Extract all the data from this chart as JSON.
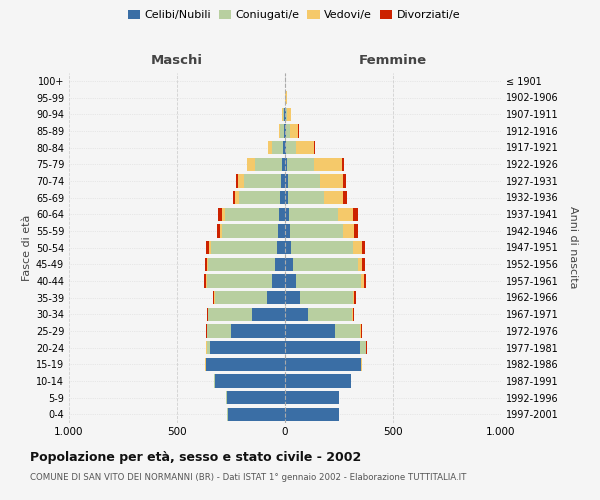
{
  "age_groups": [
    "0-4",
    "5-9",
    "10-14",
    "15-19",
    "20-24",
    "25-29",
    "30-34",
    "35-39",
    "40-44",
    "45-49",
    "50-54",
    "55-59",
    "60-64",
    "65-69",
    "70-74",
    "75-79",
    "80-84",
    "85-89",
    "90-94",
    "95-99",
    "100+"
  ],
  "birth_years": [
    "1997-2001",
    "1992-1996",
    "1987-1991",
    "1982-1986",
    "1977-1981",
    "1972-1976",
    "1967-1971",
    "1962-1966",
    "1957-1961",
    "1952-1956",
    "1947-1951",
    "1942-1946",
    "1937-1941",
    "1932-1936",
    "1927-1931",
    "1922-1926",
    "1917-1921",
    "1912-1916",
    "1907-1911",
    "1902-1906",
    "≤ 1901"
  ],
  "maschi": {
    "celibi": [
      265,
      270,
      325,
      365,
      345,
      250,
      155,
      85,
      60,
      45,
      38,
      32,
      28,
      22,
      18,
      12,
      8,
      5,
      3,
      0,
      0
    ],
    "coniugati": [
      2,
      2,
      2,
      3,
      18,
      110,
      200,
      240,
      300,
      310,
      305,
      260,
      250,
      190,
      170,
      125,
      50,
      18,
      8,
      0,
      0
    ],
    "vedovi": [
      0,
      0,
      0,
      3,
      2,
      2,
      3,
      2,
      5,
      5,
      8,
      10,
      15,
      20,
      30,
      40,
      20,
      5,
      5,
      0,
      0
    ],
    "divorziati": [
      0,
      0,
      0,
      0,
      0,
      3,
      5,
      8,
      10,
      12,
      15,
      15,
      15,
      10,
      10,
      0,
      0,
      0,
      0,
      0,
      0
    ]
  },
  "femmine": {
    "nubili": [
      250,
      250,
      305,
      350,
      345,
      230,
      108,
      68,
      52,
      38,
      28,
      22,
      18,
      14,
      12,
      8,
      5,
      4,
      3,
      0,
      0
    ],
    "coniugate": [
      2,
      2,
      2,
      4,
      28,
      118,
      200,
      245,
      298,
      300,
      288,
      248,
      228,
      168,
      148,
      128,
      48,
      18,
      8,
      2,
      0
    ],
    "vedove": [
      0,
      0,
      0,
      4,
      4,
      4,
      5,
      8,
      15,
      20,
      40,
      50,
      70,
      88,
      108,
      128,
      80,
      40,
      18,
      5,
      0
    ],
    "divorziate": [
      0,
      0,
      0,
      0,
      2,
      5,
      8,
      10,
      12,
      12,
      15,
      18,
      20,
      15,
      15,
      10,
      5,
      5,
      0,
      0,
      0
    ]
  },
  "colors": {
    "celibi": "#3a6ea5",
    "coniugati": "#b8cfa0",
    "vedovi": "#f5c96a",
    "divorziati": "#cc2200"
  },
  "legend_labels": [
    "Celibi/Nubili",
    "Coniugati/e",
    "Vedovi/e",
    "Divorziati/e"
  ],
  "title1": "Popolazione per età, sesso e stato civile - 2002",
  "title2": "COMUNE DI SAN VITO DEI NORMANNI (BR) - Dati ISTAT 1° gennaio 2002 - Elaborazione TUTTITALIA.IT",
  "xlabel_left": "Maschi",
  "xlabel_right": "Femmine",
  "ylabel_left": "Fasce di età",
  "ylabel_right": "Anni di nascita",
  "xlim": 1000,
  "bg_color": "#f5f5f5"
}
